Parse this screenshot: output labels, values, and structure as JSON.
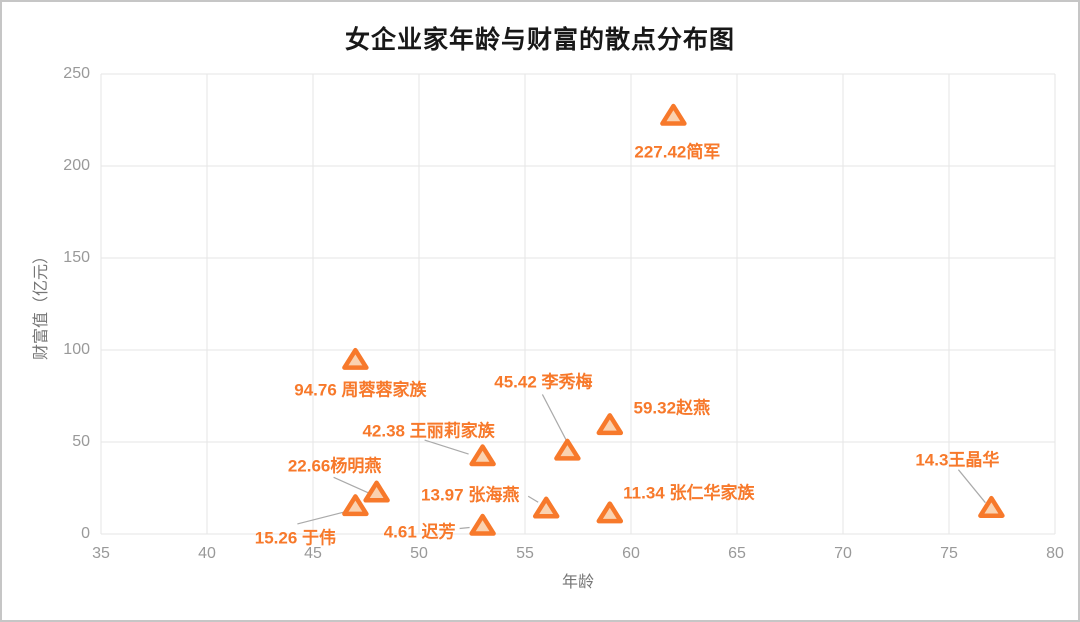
{
  "chart_data": {
    "type": "scatter",
    "title": "女企业家年龄与财富的散点分布图",
    "xlabel": "年龄",
    "ylabel": "财富值（亿元）",
    "xlim": [
      35,
      80
    ],
    "ylim": [
      0,
      250
    ],
    "x_ticks": [
      35,
      40,
      45,
      50,
      55,
      60,
      65,
      70,
      75,
      80
    ],
    "y_ticks": [
      0,
      50,
      100,
      150,
      200,
      250
    ],
    "grid": true,
    "legend": "none",
    "marker_symbol": "triangle",
    "colors": {
      "accent": "#f7792b",
      "marker_fill": "#fad2b0",
      "grid": "#e6e6e6",
      "tick": "#999999",
      "axis_name": "#757575",
      "title": "#181818",
      "leader": "#aaaaaa",
      "border": "#c6c6c6"
    },
    "points": [
      {
        "name": "简军",
        "x": 62,
        "y": 227.42,
        "label": "227.42简军",
        "label_offset": [
          4,
          34
        ],
        "leader": null
      },
      {
        "name": "周蓉蓉家族",
        "x": 47,
        "y": 94.76,
        "label": "94.76 周蓉蓉家族",
        "label_offset": [
          5,
          28
        ],
        "leader": null
      },
      {
        "name": "李秀梅",
        "x": 57,
        "y": 45.42,
        "label": "45.42 李秀梅",
        "label_offset": [
          -24,
          -70
        ],
        "leader": [
          -25,
          -56,
          0,
          -8
        ]
      },
      {
        "name": "赵燕",
        "x": 59,
        "y": 59.32,
        "label": "59.32赵燕",
        "label_offset": [
          62,
          -19
        ],
        "leader": null
      },
      {
        "name": "王丽莉家族",
        "x": 53,
        "y": 42.38,
        "label": "42.38 王丽莉家族",
        "label_offset": [
          -54,
          -27
        ],
        "leader": [
          -58,
          -16,
          -14,
          -2
        ]
      },
      {
        "name": "杨明燕",
        "x": 48,
        "y": 22.66,
        "label": "22.66杨明燕",
        "label_offset": [
          -42,
          -28
        ],
        "leader": [
          -43,
          -15,
          -5,
          2
        ]
      },
      {
        "name": "于伟",
        "x": 47,
        "y": 15.26,
        "label": "15.26 于伟",
        "label_offset": [
          -60,
          30
        ],
        "leader": [
          -58,
          18,
          -3,
          4
        ]
      },
      {
        "name": "张海燕",
        "x": 56,
        "y": 13.97,
        "label": "13.97 张海燕",
        "label_offset": [
          -76,
          -15
        ],
        "leader": [
          -18,
          -12,
          -8,
          -6
        ]
      },
      {
        "name": "迟芳",
        "x": 53,
        "y": 4.61,
        "label": "4.61 迟芳",
        "label_offset": [
          -63,
          4
        ],
        "leader": [
          -23,
          3,
          -13,
          2
        ]
      },
      {
        "name": "张仁华家族",
        "x": 59,
        "y": 11.34,
        "label": "11.34 张仁华家族",
        "label_offset": [
          79,
          -22
        ],
        "leader": null
      },
      {
        "name": "王晶华",
        "x": 77,
        "y": 14.3,
        "label": "14.3王晶华",
        "label_offset": [
          -34,
          -50
        ],
        "leader": [
          -33,
          -38,
          -6,
          -5
        ]
      }
    ]
  }
}
